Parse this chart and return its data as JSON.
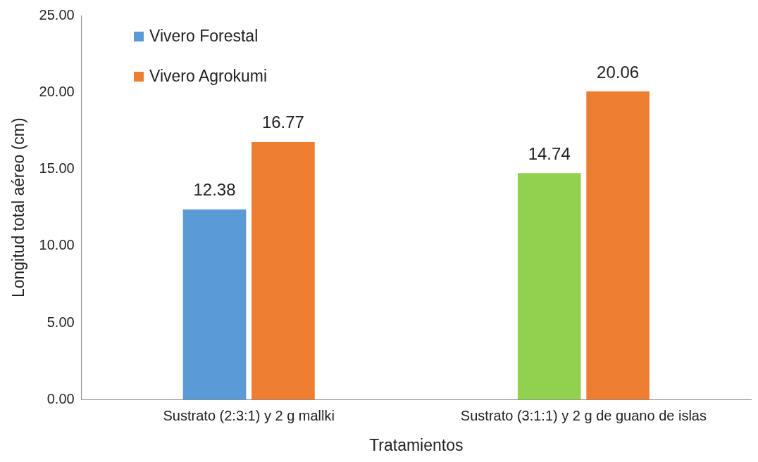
{
  "chart_data": {
    "type": "bar",
    "xlabel": "Tratamientos",
    "ylabel": "Longitud total aéreo (cm)",
    "categories": [
      "Sustrato (2:3:1) y 2 g mallki",
      "Sustrato (3:1:1) y 2 g de guano de islas"
    ],
    "series": [
      {
        "name": "Vivero Forestal",
        "color": "#5b9bd5",
        "colors": [
          "#5b9bd5",
          "#92d050"
        ],
        "values": [
          12.38,
          14.74
        ]
      },
      {
        "name": "Vivero Agrokumi",
        "color": "#ed7d31",
        "values": [
          16.77,
          20.06
        ]
      }
    ],
    "ylim": [
      0,
      25
    ],
    "yticks": [
      {
        "value": 0,
        "label": "0.00"
      },
      {
        "value": 5,
        "label": "5.00"
      },
      {
        "value": 10,
        "label": "10.00"
      },
      {
        "value": 15,
        "label": "15.00"
      },
      {
        "value": 20,
        "label": "20.00"
      },
      {
        "value": 25,
        "label": "25.00"
      }
    ],
    "grid": false,
    "legend": "top left",
    "data_labels": true
  }
}
